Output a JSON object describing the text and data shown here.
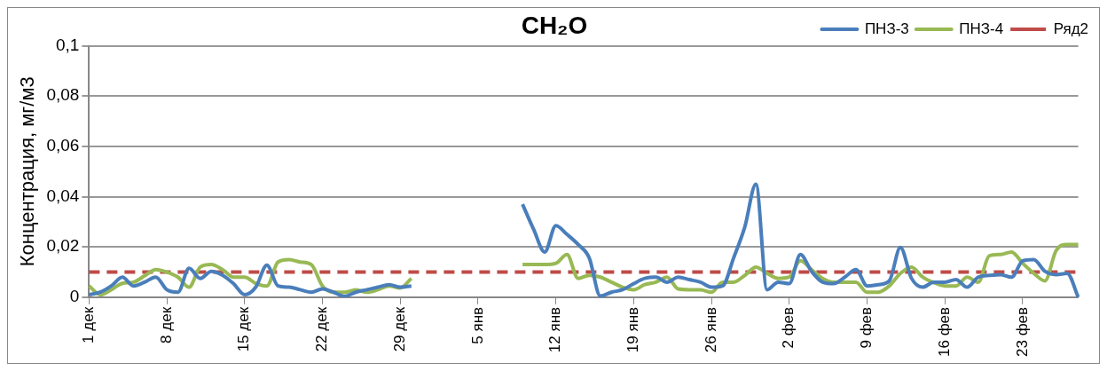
{
  "chart_data": {
    "type": "line",
    "title": "CH₂O",
    "ylabel": "Концентрация, мг/м3",
    "categories": [
      "1 дек",
      null,
      null,
      null,
      null,
      null,
      null,
      "8 дек",
      null,
      null,
      null,
      null,
      null,
      null,
      "15 дек",
      null,
      null,
      null,
      null,
      null,
      null,
      "22 дек",
      null,
      null,
      null,
      null,
      null,
      null,
      "29 дек",
      null,
      null,
      null,
      null,
      null,
      null,
      "5 янв",
      null,
      null,
      null,
      null,
      null,
      null,
      "12 янв",
      null,
      null,
      null,
      null,
      null,
      null,
      "19 янв",
      null,
      null,
      null,
      null,
      null,
      null,
      "26 янв",
      null,
      null,
      null,
      null,
      null,
      null,
      "2 фев",
      null,
      null,
      null,
      null,
      null,
      null,
      "9 фев",
      null,
      null,
      null,
      null,
      null,
      null,
      "16 фев",
      null,
      null,
      null,
      null,
      null,
      null,
      "23 фев",
      null,
      null,
      null,
      null,
      null
    ],
    "series": [
      {
        "name": "ПНЗ-3",
        "color": "#4a7ebb",
        "values": [
          0.001,
          0.002,
          0.0045,
          0.008,
          0.0045,
          0.006,
          0.008,
          0.003,
          0.002,
          0.0115,
          0.0075,
          0.0103,
          0.0088,
          0.0054,
          0.001,
          0.004,
          0.0128,
          0.0045,
          0.004,
          0.003,
          0.002,
          0.0033,
          0.002,
          0.0004,
          0.002,
          0.003,
          0.004,
          0.005,
          0.004,
          0.0045,
          null,
          null,
          null,
          null,
          null,
          null,
          null,
          null,
          null,
          0.037,
          0.027,
          0.018,
          0.0285,
          0.025,
          0.021,
          0.0157,
          0.0005,
          0.002,
          0.003,
          0.0054,
          0.0075,
          0.008,
          0.006,
          0.008,
          0.007,
          0.006,
          0.004,
          0.0045,
          0.0157,
          0.028,
          0.045,
          0.003,
          0.006,
          0.0054,
          0.017,
          0.0103,
          0.006,
          0.0054,
          0.008,
          0.011,
          0.0045,
          0.005,
          0.0065,
          0.0198,
          0.0075,
          0.004,
          0.006,
          0.006,
          0.007,
          0.004,
          0.008,
          0.0087,
          0.009,
          0.008,
          0.0145,
          0.015,
          0.0103,
          0.009,
          0.0095,
          0
        ]
      },
      {
        "name": "ПНЗ-4",
        "color": "#98b954",
        "values": [
          0.0045,
          0.001,
          0.003,
          0.0055,
          0.006,
          0.0085,
          0.011,
          0.01,
          0.008,
          0.004,
          0.012,
          0.013,
          0.011,
          0.008,
          0.008,
          0.0055,
          0.0045,
          0.014,
          0.015,
          0.014,
          0.013,
          0.0045,
          0.002,
          0.002,
          0.003,
          0.002,
          0.003,
          0.0045,
          0.0037,
          0.0075,
          null,
          null,
          null,
          null,
          null,
          null,
          null,
          null,
          null,
          0.013,
          0.013,
          0.013,
          0.0135,
          0.017,
          0.0075,
          0.0087,
          0.008,
          0.006,
          0.004,
          0.003,
          0.005,
          0.006,
          0.008,
          0.0033,
          0.003,
          0.003,
          0.002,
          0.006,
          0.006,
          0.0087,
          0.012,
          0.0095,
          0.0075,
          0.008,
          0.0145,
          0.011,
          0.0075,
          0.006,
          0.006,
          0.006,
          0.002,
          0.002,
          0.0045,
          0.0095,
          0.012,
          0.008,
          0.0058,
          0.0045,
          0.0045,
          0.008,
          0.006,
          0.0165,
          0.017,
          0.018,
          0.0135,
          0.0095,
          0.0065,
          0.0185,
          0.021,
          0.021
        ]
      },
      {
        "name": "Ряд2",
        "color": "#be4b48",
        "line_style": "dashed",
        "values": [
          0.01,
          0.01,
          0.01,
          0.01,
          0.01,
          0.01,
          0.01,
          0.01,
          0.01,
          0.01,
          0.01,
          0.01,
          0.01,
          0.01,
          0.01,
          0.01,
          0.01,
          0.01,
          0.01,
          0.01,
          0.01,
          0.01,
          0.01,
          0.01,
          0.01,
          0.01,
          0.01,
          0.01,
          0.01,
          0.01,
          0.01,
          0.01,
          0.01,
          0.01,
          0.01,
          0.01,
          0.01,
          0.01,
          0.01,
          0.01,
          0.01,
          0.01,
          0.01,
          0.01,
          0.01,
          0.01,
          0.01,
          0.01,
          0.01,
          0.01,
          0.01,
          0.01,
          0.01,
          0.01,
          0.01,
          0.01,
          0.01,
          0.01,
          0.01,
          0.01,
          0.01,
          0.01,
          0.01,
          0.01,
          0.01,
          0.01,
          0.01,
          0.01,
          0.01,
          0.01,
          0.01,
          0.01,
          0.01,
          0.01,
          0.01,
          0.01,
          0.01,
          0.01,
          0.01,
          0.01,
          0.01,
          0.01,
          0.01,
          0.01,
          0.01,
          0.01,
          0.01,
          0.01,
          0.01,
          0.01
        ]
      }
    ],
    "ylim": [
      0,
      0.1
    ],
    "yticks": [
      {
        "value": 0,
        "label": "0"
      },
      {
        "value": 0.02,
        "label": "0,02"
      },
      {
        "value": 0.04,
        "label": "0,04"
      },
      {
        "value": 0.06,
        "label": "0,06"
      },
      {
        "value": 0.08,
        "label": "0,08"
      },
      {
        "value": 0.1,
        "label": "0,1"
      }
    ],
    "grid": "y",
    "legend": "top right",
    "marker": "none",
    "line_style": "solid"
  }
}
